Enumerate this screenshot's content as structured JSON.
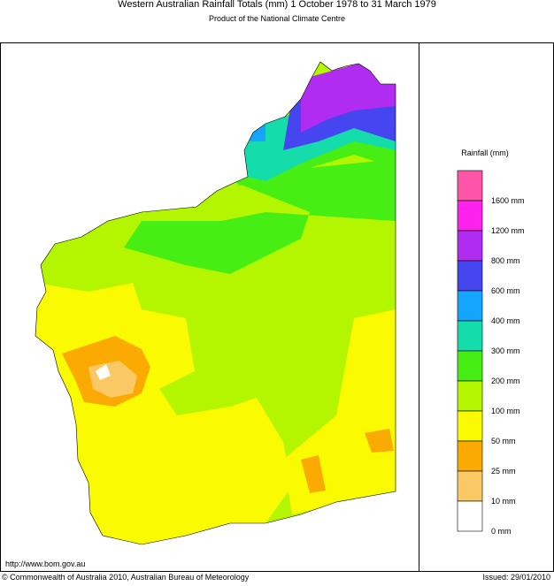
{
  "header": {
    "title": "Western Australian Rainfall Totals (mm) 1 October 1978 to 31 March 1979",
    "subtitle": "Product of the National Climate Centre"
  },
  "legend": {
    "title": "Rainfall (mm)",
    "items": [
      {
        "label": "1600 mm",
        "color": "#ff55a8"
      },
      {
        "label": "1200 mm",
        "color": "#ff22ee"
      },
      {
        "label": "800 mm",
        "color": "#b02cf0"
      },
      {
        "label": "600 mm",
        "color": "#4646f0"
      },
      {
        "label": "400 mm",
        "color": "#14a6ff"
      },
      {
        "label": "300 mm",
        "color": "#14dcaa"
      },
      {
        "label": "200 mm",
        "color": "#46ee14"
      },
      {
        "label": "100 mm",
        "color": "#b4f500"
      },
      {
        "label": "50 mm",
        "color": "#fafa00"
      },
      {
        "label": "25 mm",
        "color": "#faaa00"
      },
      {
        "label": "10 mm",
        "color": "#fac864"
      },
      {
        "label": "0 mm",
        "color": "#ffffff"
      }
    ]
  },
  "footer": {
    "url": "http://www.bom.gov.au",
    "copyright": "© Commonwealth of Australia 2010, Australian Bureau of Meteorology",
    "issued": "Issued: 29/01/2010"
  }
}
